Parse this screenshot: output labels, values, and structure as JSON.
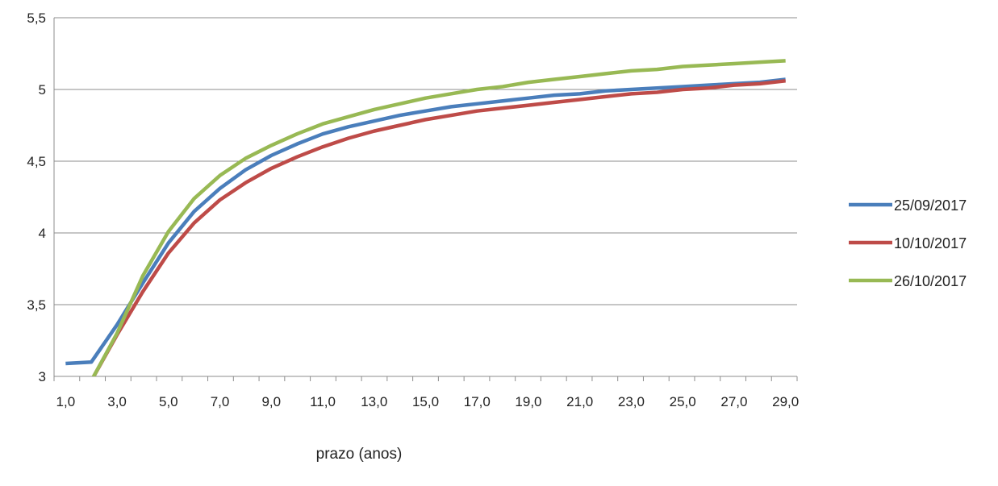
{
  "chart_data": {
    "type": "line",
    "xlabel": "prazo (anos)",
    "ylabel": "",
    "x": [
      1,
      2,
      3,
      4,
      5,
      6,
      7,
      8,
      9,
      10,
      11,
      12,
      13,
      14,
      15,
      16,
      17,
      18,
      19,
      20,
      21,
      22,
      23,
      24,
      25,
      26,
      27,
      28,
      29
    ],
    "xticks": [
      "1,0",
      "3,0",
      "5,0",
      "7,0",
      "9,0",
      "11,0",
      "13,0",
      "15,0",
      "17,0",
      "19,0",
      "21,0",
      "23,0",
      "25,0",
      "27,0",
      "29,0"
    ],
    "yticks": [
      "3",
      "3,5",
      "4",
      "4,5",
      "5",
      "5,5"
    ],
    "ylim": [
      3,
      5.5
    ],
    "grid": true,
    "legend": "right",
    "series": [
      {
        "name": "25/09/2017",
        "color": "#4a7ebb",
        "values": [
          3.09,
          3.1,
          3.36,
          3.65,
          3.93,
          4.15,
          4.31,
          4.44,
          4.54,
          4.62,
          4.69,
          4.74,
          4.78,
          4.82,
          4.85,
          4.88,
          4.9,
          4.92,
          4.94,
          4.96,
          4.97,
          4.99,
          5.0,
          5.01,
          5.02,
          5.03,
          5.04,
          5.05,
          5.07
        ]
      },
      {
        "name": "10/10/2017",
        "color": "#be4b48",
        "values": [
          null,
          2.97,
          3.29,
          3.59,
          3.86,
          4.07,
          4.23,
          4.35,
          4.45,
          4.53,
          4.6,
          4.66,
          4.71,
          4.75,
          4.79,
          4.82,
          4.85,
          4.87,
          4.89,
          4.91,
          4.93,
          4.95,
          4.97,
          4.98,
          5.0,
          5.01,
          5.03,
          5.04,
          5.06
        ]
      },
      {
        "name": "26/10/2017",
        "color": "#98b954",
        "values": [
          null,
          2.97,
          3.3,
          3.7,
          4.01,
          4.24,
          4.4,
          4.52,
          4.61,
          4.69,
          4.76,
          4.81,
          4.86,
          4.9,
          4.94,
          4.97,
          5.0,
          5.02,
          5.05,
          5.07,
          5.09,
          5.11,
          5.13,
          5.14,
          5.16,
          5.17,
          5.18,
          5.19,
          5.2
        ]
      }
    ]
  }
}
